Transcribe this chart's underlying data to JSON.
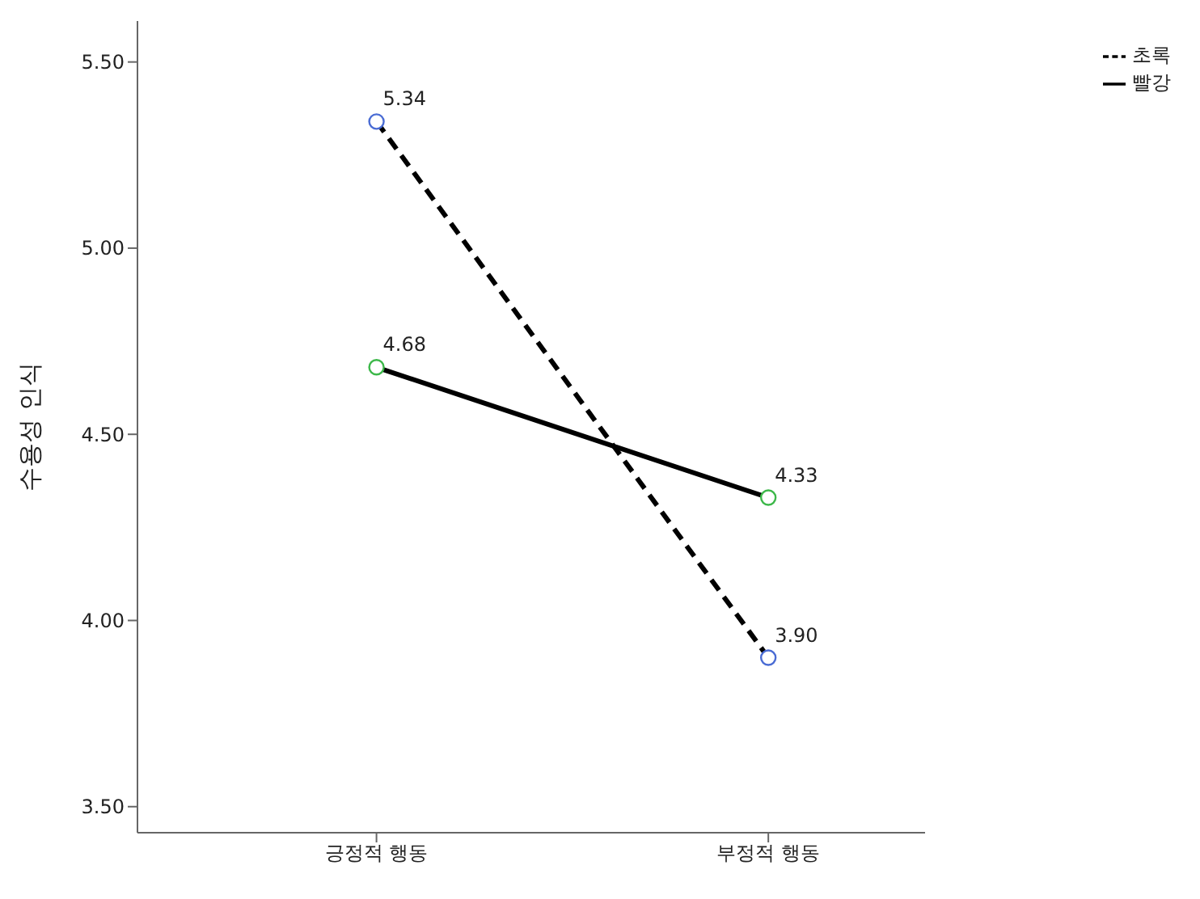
{
  "chart_data": {
    "type": "line",
    "ylabel": "수용성 인식",
    "categories": [
      "긍정적 행동",
      "부정적 행동"
    ],
    "series": [
      {
        "name": "초록",
        "color": "#000000",
        "colors": [
          "#4a6cd4",
          "#4a6cd4"
        ],
        "values": [
          5.34,
          3.9
        ],
        "value_labels": [
          "5.34",
          "3.90"
        ],
        "line_style": "dashed"
      },
      {
        "name": "빨강",
        "color": "#000000",
        "colors": [
          "#3db84a",
          "#3db84a"
        ],
        "values": [
          4.68,
          4.33
        ],
        "value_labels": [
          "4.68",
          "4.33"
        ],
        "line_style": "solid"
      }
    ],
    "ylim": [
      3.43,
      5.61
    ],
    "yticks": [
      {
        "value": 3.5,
        "label": "3.50"
      },
      {
        "value": 4,
        "label": "4.00"
      },
      {
        "value": 4.5,
        "label": "4.50"
      },
      {
        "value": 5,
        "label": "5.00"
      },
      {
        "value": 5.5,
        "label": "5.50"
      }
    ],
    "marker": "circle",
    "legend": "top right",
    "grid": false
  }
}
